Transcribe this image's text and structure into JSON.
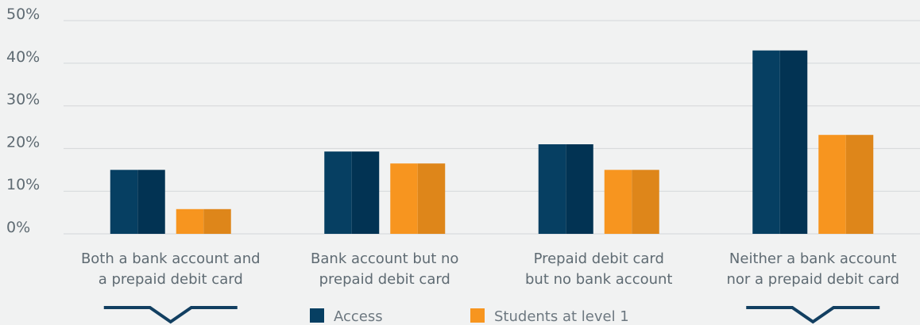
{
  "chart_data": {
    "type": "bar",
    "title": "",
    "xlabel": "",
    "ylabel": "",
    "ylim": [
      0,
      50
    ],
    "y_ticks": [
      "0%",
      "10%",
      "20%",
      "30%",
      "40%",
      "50%"
    ],
    "y_tick_values": [
      0,
      10,
      20,
      30,
      40,
      50
    ],
    "grid": true,
    "legend_position": "bottom-center",
    "categories": [
      [
        "Both a bank account and",
        "a prepaid debit card"
      ],
      [
        "Bank account but no",
        "prepaid debit card"
      ],
      [
        "Prepaid debit card",
        "but no bank account"
      ],
      [
        "Neither a bank account",
        "nor a prepaid debit card"
      ]
    ],
    "series": [
      {
        "name": "Access",
        "values": [
          15,
          19.3,
          21,
          43
        ],
        "color": "#063f62",
        "shade": "#023353"
      },
      {
        "name": "Students at level 1",
        "values": [
          5.8,
          16.5,
          15,
          23.2
        ],
        "color": "#f7951f",
        "shade": "#de861a"
      }
    ],
    "highlighted_categories": [
      0,
      3
    ],
    "colors": {
      "background": "#f1f2f2",
      "grid": "#d4d7d9",
      "axis_text": "#5f6b73",
      "highlight": "#123f61"
    }
  }
}
